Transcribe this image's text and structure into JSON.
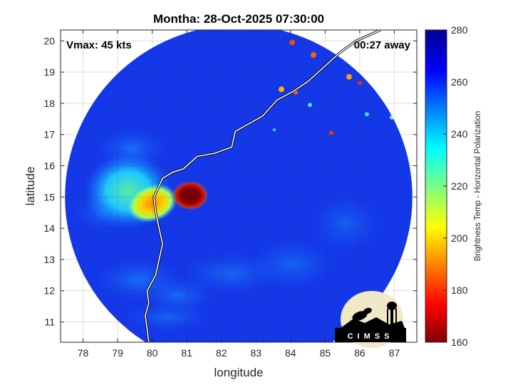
{
  "chart_data": {
    "type": "heatmap",
    "title": "Montha: 28-Oct-2025 07:30:00",
    "annotations": {
      "vmax": "Vmax: 45 kts",
      "time_offset": "00:27 away"
    },
    "xlabel": "longitude",
    "ylabel": "latitude",
    "xlim": [
      77.35,
      87.65
    ],
    "ylim": [
      10.35,
      20.35
    ],
    "x_ticks": [
      "78",
      "79",
      "80",
      "81",
      "82",
      "83",
      "84",
      "85",
      "86",
      "87"
    ],
    "y_ticks": [
      "11",
      "12",
      "13",
      "14",
      "15",
      "16",
      "17",
      "18",
      "19",
      "20"
    ],
    "grid": true,
    "colorbar": {
      "label": "Brightness Temp - Horizontal Polarization",
      "min": 160,
      "max": 280,
      "ticks": [
        "160",
        "180",
        "200",
        "220",
        "240",
        "260",
        "280"
      ],
      "colormap": "jet"
    },
    "swath": {
      "center_lon": 82.5,
      "center_lat": 15.0,
      "radius_deg": 5.4
    },
    "features": [
      {
        "name": "storm-core",
        "lon": 81.1,
        "lat": 15.05,
        "brightness_temp": 168
      },
      {
        "name": "rainband",
        "lon": 80.0,
        "lat": 14.8,
        "brightness_temp": 205
      },
      {
        "name": "outer-band",
        "lon": 79.3,
        "lat": 15.2,
        "brightness_temp": 225
      }
    ],
    "coastline": [
      [
        79.9,
        10.35
      ],
      [
        79.85,
        10.8
      ],
      [
        79.8,
        11.2
      ],
      [
        79.9,
        11.6
      ],
      [
        79.85,
        12.0
      ],
      [
        80.1,
        12.5
      ],
      [
        80.2,
        13.0
      ],
      [
        80.3,
        13.5
      ],
      [
        80.2,
        14.0
      ],
      [
        80.1,
        14.5
      ],
      [
        80.05,
        15.0
      ],
      [
        80.3,
        15.6
      ],
      [
        80.6,
        15.8
      ],
      [
        80.9,
        15.9
      ],
      [
        81.3,
        16.3
      ],
      [
        81.8,
        16.4
      ],
      [
        82.3,
        16.6
      ],
      [
        82.4,
        17.1
      ],
      [
        83.2,
        17.6
      ],
      [
        83.6,
        18.1
      ],
      [
        84.1,
        18.4
      ],
      [
        84.5,
        18.7
      ],
      [
        84.9,
        19.1
      ],
      [
        85.4,
        19.6
      ],
      [
        85.9,
        20.0
      ],
      [
        86.3,
        20.2
      ],
      [
        86.6,
        20.35
      ]
    ],
    "logo_text": "CIMSS"
  }
}
